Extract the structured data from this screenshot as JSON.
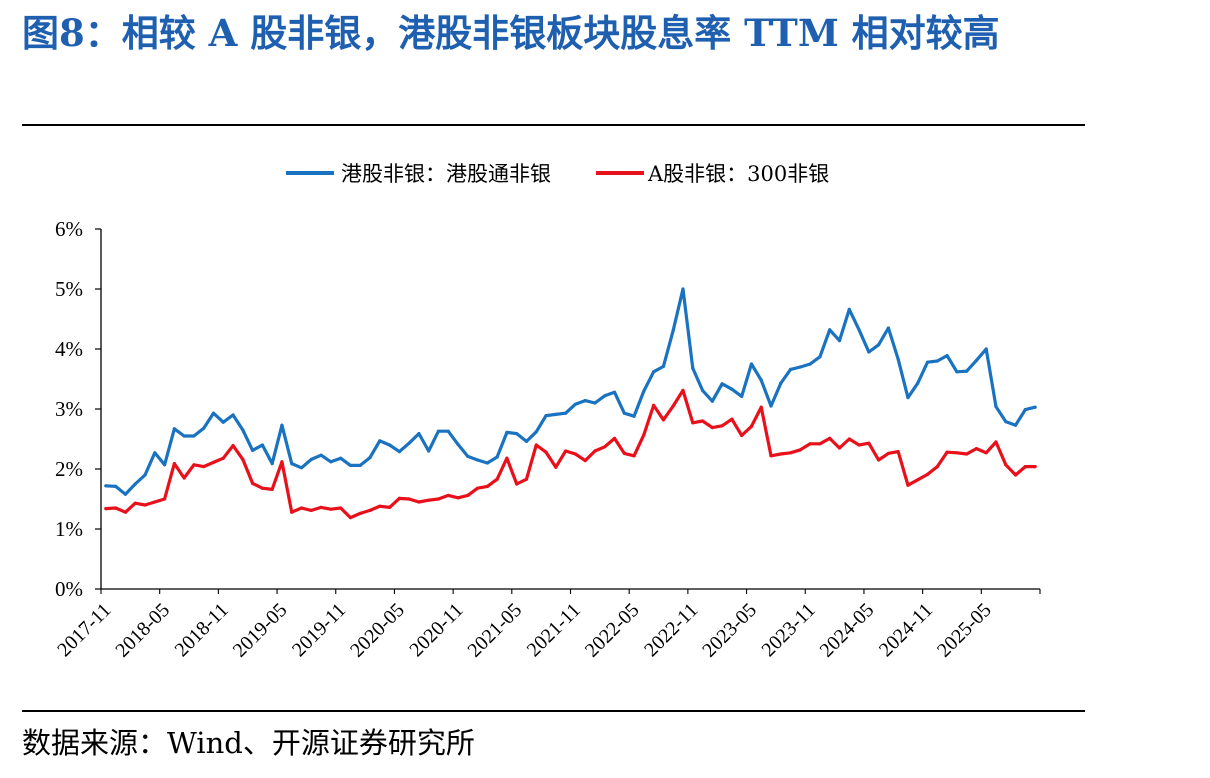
{
  "figure": {
    "title": "图8：相较 A 股非银，港股非银板块股息率 TTM 相对较高",
    "source": "数据来源：Wind、开源证券研究所"
  },
  "colors": {
    "hk": "#1a73c0",
    "a": "#e8101a",
    "axis": "#000000"
  },
  "chart_data": {
    "type": "line",
    "legend_position": "top-center",
    "grid": false,
    "ylim": [
      0,
      6
    ],
    "yticks": [
      "0%",
      "1%",
      "2%",
      "3%",
      "4%",
      "5%",
      "6%"
    ],
    "xtick_labels": [
      "2017-11",
      "2018-05",
      "2018-11",
      "2019-05",
      "2019-11",
      "2020-05",
      "2020-11",
      "2021-05",
      "2021-11",
      "2022-05",
      "2022-11",
      "2023-05",
      "2023-11",
      "2024-05",
      "2024-11",
      "2025-05"
    ],
    "series": [
      {
        "name": "港股非银：港股通非银",
        "color": "#1a73c0",
        "values": [
          1.72,
          1.71,
          1.58,
          1.75,
          1.9,
          2.27,
          2.07,
          2.67,
          2.55,
          2.55,
          2.68,
          2.93,
          2.78,
          2.9,
          2.65,
          2.31,
          2.4,
          2.09,
          2.73,
          2.09,
          2.02,
          2.16,
          2.23,
          2.12,
          2.18,
          2.06,
          2.06,
          2.19,
          2.47,
          2.4,
          2.29,
          2.43,
          2.59,
          2.3,
          2.63,
          2.63,
          2.41,
          2.21,
          2.15,
          2.1,
          2.2,
          2.61,
          2.59,
          2.46,
          2.62,
          2.89,
          2.91,
          2.93,
          3.08,
          3.14,
          3.1,
          3.22,
          3.28,
          2.93,
          2.88,
          3.3,
          3.62,
          3.71,
          4.31,
          5.0,
          3.68,
          3.31,
          3.13,
          3.42,
          3.33,
          3.21,
          3.75,
          3.48,
          3.05,
          3.43,
          3.66,
          3.7,
          3.75,
          3.87,
          4.32,
          4.14,
          4.66,
          4.32,
          3.95,
          4.07,
          4.35,
          3.83,
          3.19,
          3.43,
          3.78,
          3.8,
          3.89,
          3.62,
          3.63,
          3.81,
          4.0,
          3.04,
          2.79,
          2.73,
          2.99,
          3.03
        ]
      },
      {
        "name": "A股非银：300非银",
        "color": "#e8101a",
        "values": [
          1.34,
          1.35,
          1.28,
          1.43,
          1.4,
          1.45,
          1.5,
          2.09,
          1.85,
          2.07,
          2.04,
          2.11,
          2.18,
          2.39,
          2.16,
          1.76,
          1.68,
          1.66,
          2.12,
          1.28,
          1.35,
          1.31,
          1.36,
          1.33,
          1.35,
          1.19,
          1.26,
          1.31,
          1.38,
          1.36,
          1.51,
          1.5,
          1.45,
          1.48,
          1.5,
          1.56,
          1.52,
          1.56,
          1.68,
          1.71,
          1.83,
          2.18,
          1.75,
          1.83,
          2.4,
          2.28,
          2.03,
          2.3,
          2.25,
          2.14,
          2.3,
          2.37,
          2.51,
          2.26,
          2.22,
          2.57,
          3.06,
          2.82,
          3.05,
          3.31,
          2.77,
          2.8,
          2.69,
          2.72,
          2.83,
          2.56,
          2.71,
          3.03,
          2.22,
          2.25,
          2.27,
          2.32,
          2.42,
          2.42,
          2.51,
          2.35,
          2.5,
          2.4,
          2.43,
          2.15,
          2.26,
          2.29,
          1.73,
          1.82,
          1.91,
          2.04,
          2.28,
          2.27,
          2.25,
          2.34,
          2.27,
          2.45,
          2.07,
          1.9,
          2.04,
          2.04
        ]
      }
    ]
  }
}
